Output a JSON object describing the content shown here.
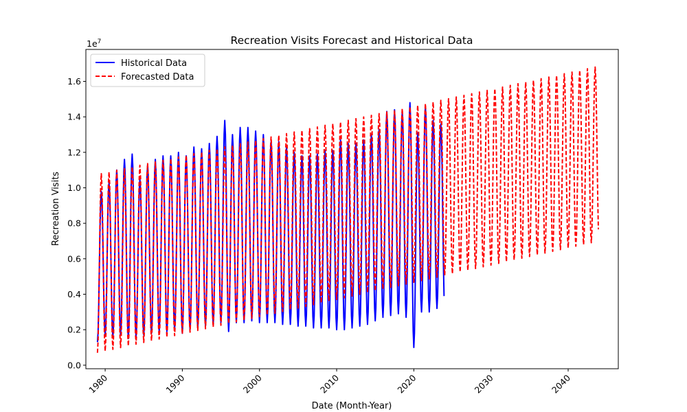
{
  "chart_data": {
    "type": "line",
    "title": "Recreation Visits Forecast and Historical Data",
    "xlabel": "Date (Month-Year)",
    "ylabel": "Recreation Visits",
    "y_scale_note": "1e7",
    "xlim": [
      1977.5,
      2046.5
    ],
    "ylim": [
      -200000,
      17800000
    ],
    "x_ticks": [
      1980,
      1990,
      2000,
      2010,
      2020,
      2030,
      2040
    ],
    "x_tick_labels": [
      "1980",
      "1990",
      "2000",
      "2010",
      "2020",
      "2030",
      "2040"
    ],
    "y_ticks": [
      0,
      2000000,
      4000000,
      6000000,
      8000000,
      10000000,
      12000000,
      14000000,
      16000000
    ],
    "y_tick_labels": [
      "0.0",
      "0.2",
      "0.4",
      "0.6",
      "0.8",
      "1.0",
      "1.2",
      "1.4",
      "1.6"
    ],
    "x_tick_rotation_deg": 45,
    "grid": false,
    "legend_position": "top-left",
    "series": [
      {
        "name": "Historical Data",
        "color": "#0000ff",
        "style": "solid",
        "start_year": 1979,
        "end_year": 2023,
        "peaks": [
          9800000,
          10300000,
          11000000,
          11600000,
          11900000,
          10500000,
          11300000,
          11600000,
          11800000,
          11800000,
          12000000,
          11800000,
          12300000,
          12200000,
          12500000,
          12900000,
          13800000,
          13000000,
          13400000,
          13400000,
          13200000,
          13000000,
          12600000,
          12600000,
          12300000,
          12000000,
          11800000,
          11800000,
          11900000,
          12100000,
          12100000,
          12700000,
          12500000,
          12500000,
          12700000,
          13000000,
          13300000,
          14300000,
          14400000,
          14300000,
          14800000,
          13100000,
          14600000,
          13800000,
          13600000
        ],
        "troughs": [
          1300000,
          1700000,
          1600000,
          1700000,
          1500000,
          1600000,
          1700000,
          1800000,
          1900000,
          1900000,
          2000000,
          1800000,
          2000000,
          2100000,
          2200000,
          2300000,
          2400000,
          1900000,
          2400000,
          2400000,
          2500000,
          2400000,
          2400000,
          2400000,
          2300000,
          2300000,
          2200000,
          2200000,
          2100000,
          2100000,
          2100000,
          2000000,
          2000000,
          2100000,
          2200000,
          2300000,
          2500000,
          2700000,
          2800000,
          2900000,
          2700000,
          1000000,
          3000000,
          3000000,
          3200000
        ]
      },
      {
        "name": "Forecasted Data",
        "color": "#ff0000",
        "style": "dashed",
        "start_year": 1979,
        "end_year": 2044,
        "peaks_start": 10800000,
        "peaks_end": 16900000,
        "troughs_start": 700000,
        "troughs_end": 7000000
      }
    ]
  }
}
